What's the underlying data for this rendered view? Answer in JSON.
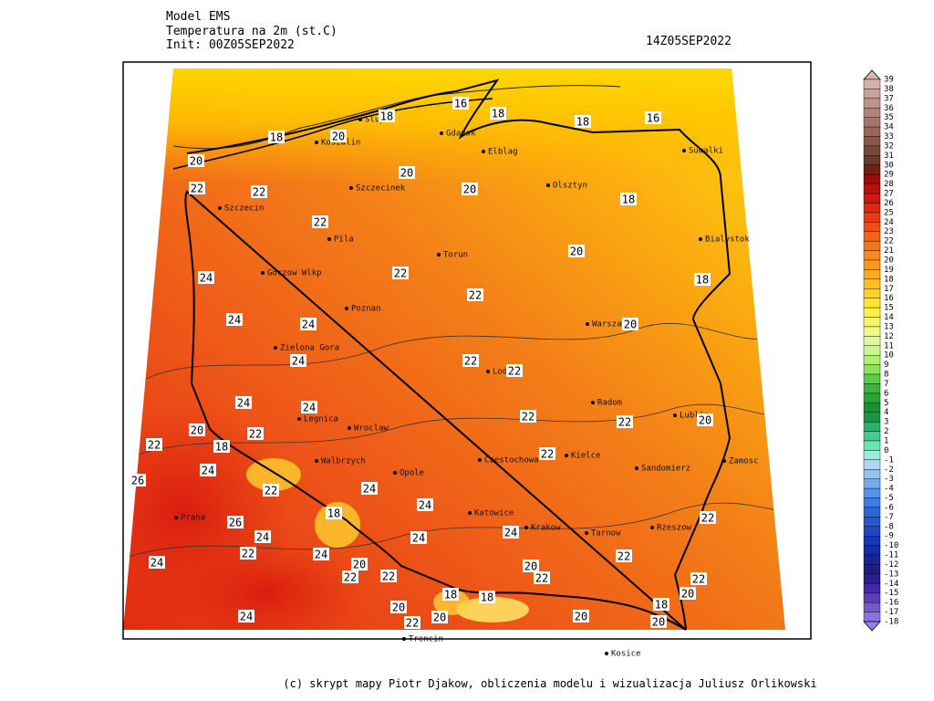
{
  "header": {
    "model": "Model EMS",
    "variable": "Temperatura na 2m (st.C)",
    "init": "Init: 00Z05SEP2022",
    "valid_time": "14Z05SEP2022"
  },
  "colorbar": {
    "labels": [
      39,
      38,
      37,
      36,
      35,
      34,
      33,
      32,
      31,
      30,
      29,
      28,
      27,
      26,
      25,
      24,
      23,
      22,
      21,
      20,
      19,
      18,
      17,
      16,
      15,
      14,
      13,
      12,
      11,
      10,
      9,
      8,
      7,
      6,
      5,
      4,
      3,
      2,
      1,
      0,
      -1,
      -2,
      -3,
      -4,
      -5,
      -6,
      -7,
      -8,
      -9,
      -10,
      -11,
      -12,
      -13,
      -14,
      -15,
      -16,
      -17,
      -18
    ]
  },
  "contour_labels": [
    16,
    18,
    18,
    18,
    16,
    18,
    20,
    20,
    20,
    22,
    22,
    20,
    18,
    22,
    20,
    18,
    24,
    22,
    22,
    24,
    24,
    20,
    24,
    22,
    22,
    24,
    24,
    22,
    22,
    20,
    20,
    22,
    18,
    22,
    22,
    24,
    26,
    22,
    24,
    24,
    18,
    26,
    24,
    22,
    24,
    24,
    22,
    24,
    22,
    24,
    20,
    22,
    22,
    20,
    22,
    22,
    18,
    18,
    20,
    20,
    18,
    20,
    20,
    24,
    22,
    20
  ],
  "cities": [
    "Slupsk",
    "Koszalin",
    "Gdansk",
    "Elblag",
    "Olsztyn",
    "Suwalki",
    "Szczecinek",
    "Szczecin",
    "Pila",
    "Torun",
    "Bialystok",
    "Gorzow Wlkp",
    "Poznan",
    "Warszawa",
    "Zielona Gora",
    "Lodz",
    "Radom",
    "Legnica",
    "Wroclaw",
    "Lublin",
    "Walbrzych",
    "Opole",
    "Czestochowa",
    "Kielce",
    "Sandomierz",
    "Zamosc",
    "Praha",
    "Katowice",
    "Krakow",
    "Tarnow",
    "Rzeszow",
    "Trencin",
    "Kosice"
  ],
  "footer": "(c) skrypt mapy Piotr Djakow, obliczenia modelu i wizualizacja Juliusz Orlikowski"
}
